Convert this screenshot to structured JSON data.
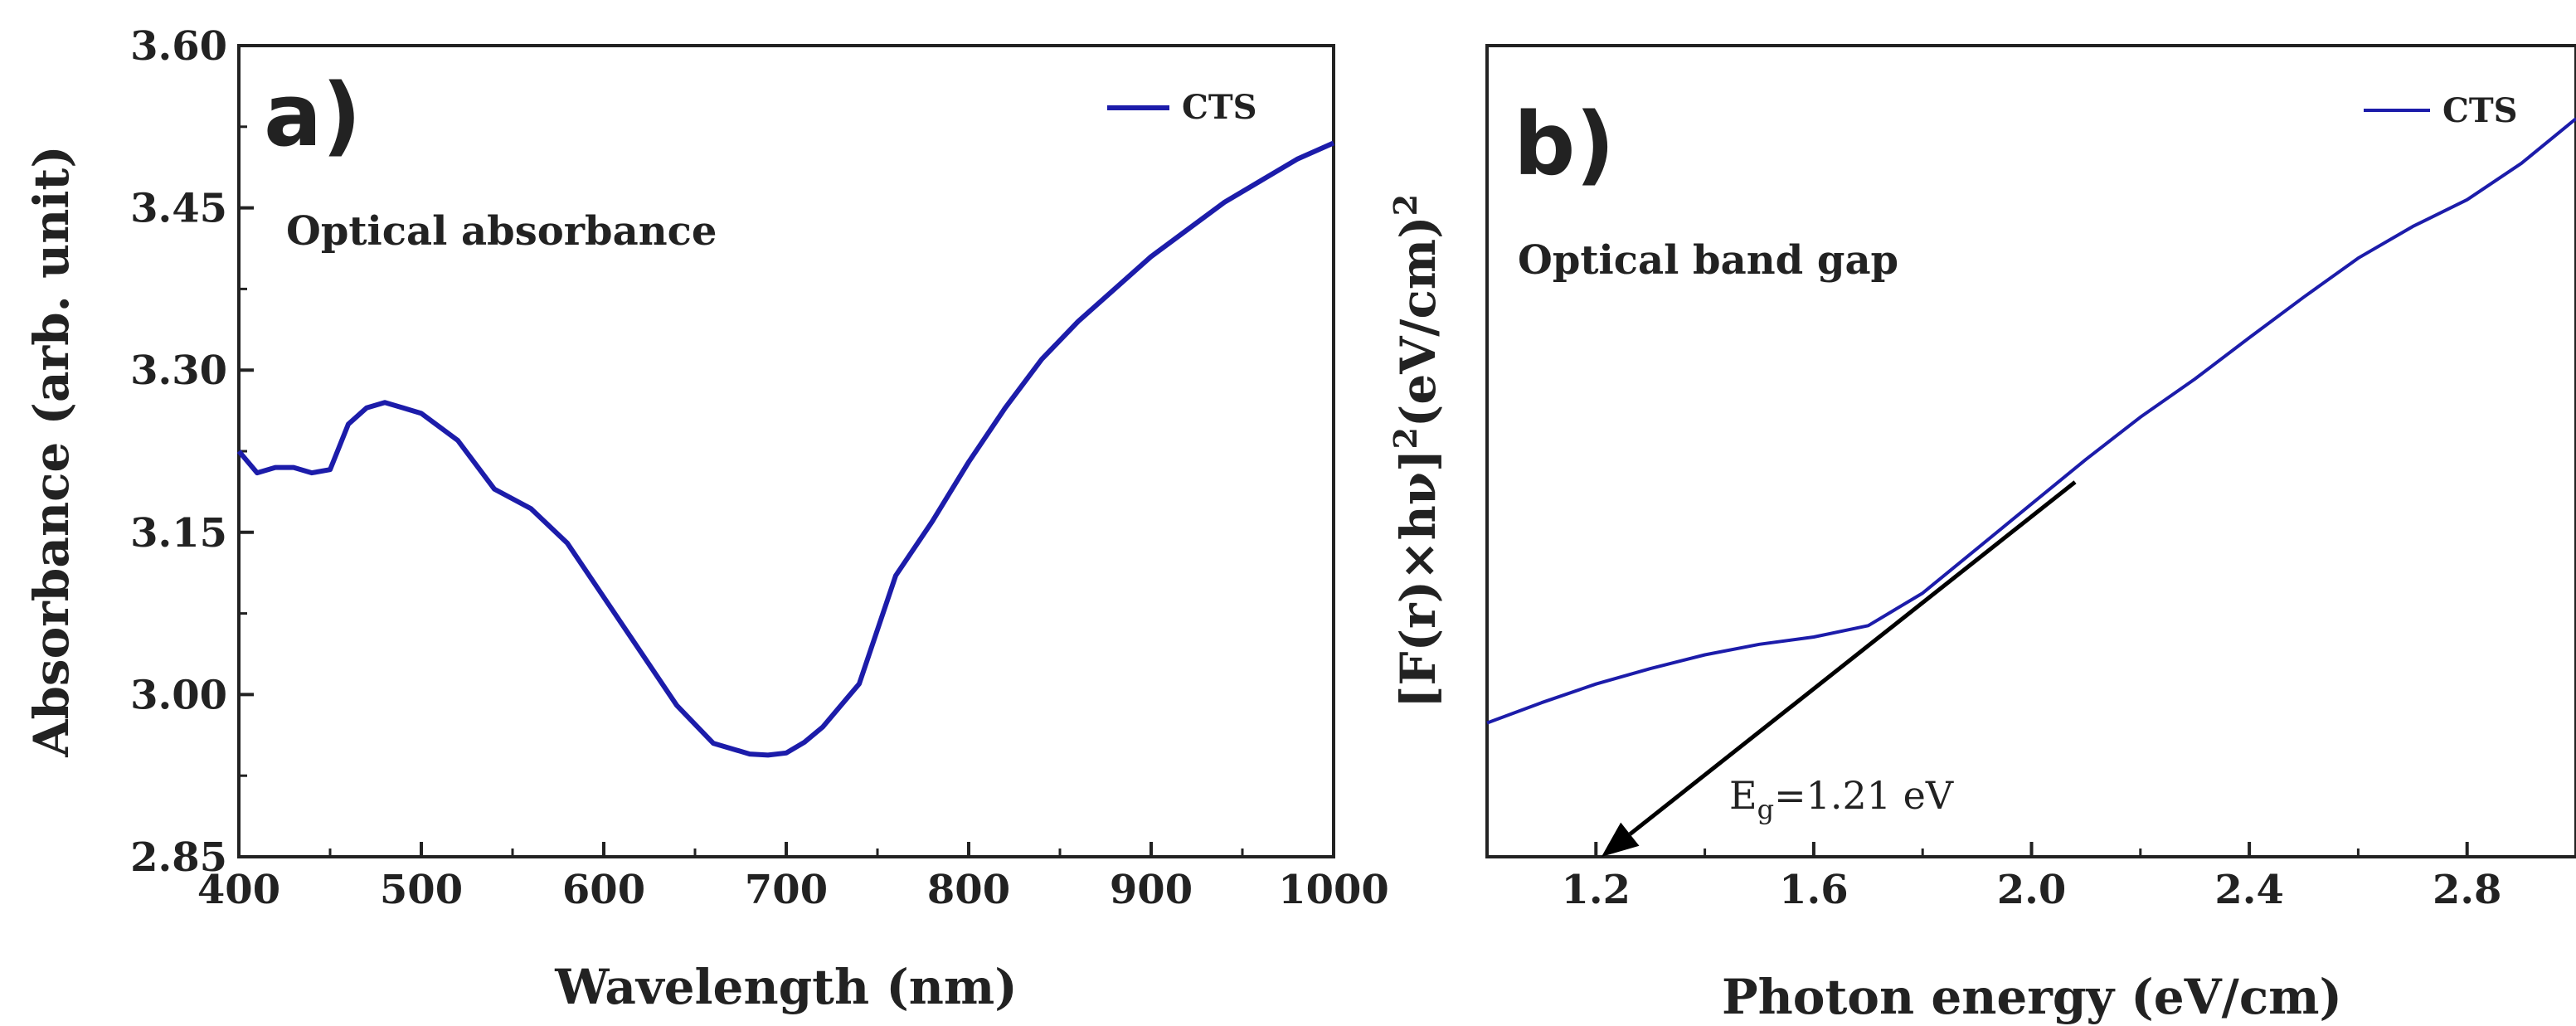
{
  "colors": {
    "series": "#1c1caa",
    "axis": "#222222",
    "arrow": "#000000"
  },
  "chart_data": [
    {
      "type": "line",
      "panel_label": "a)",
      "annotation": "Optical absorbance",
      "xlabel": "Wavelength (nm)",
      "ylabel": "Absorbance (arb. unit)",
      "xlim": [
        400,
        1000
      ],
      "ylim": [
        2.85,
        3.6
      ],
      "xticks": [
        400,
        500,
        600,
        700,
        800,
        900,
        1000
      ],
      "xtick_labels": [
        "400",
        "500",
        "600",
        "700",
        "800",
        "900",
        "1000"
      ],
      "yticks": [
        2.85,
        3.0,
        3.15,
        3.3,
        3.45,
        3.6
      ],
      "ytick_labels": [
        "2.85",
        "3.00",
        "3.15",
        "3.30",
        "3.45",
        "3.60"
      ],
      "legend": [
        "CTS"
      ],
      "legend_position": "top-right",
      "series": [
        {
          "name": "CTS",
          "x": [
            400,
            410,
            420,
            430,
            440,
            450,
            460,
            470,
            480,
            490,
            500,
            520,
            540,
            560,
            580,
            600,
            620,
            640,
            660,
            680,
            690,
            700,
            710,
            720,
            730,
            740,
            750,
            760,
            780,
            800,
            820,
            840,
            860,
            880,
            900,
            920,
            940,
            960,
            980,
            1000
          ],
          "y": [
            3.225,
            3.205,
            3.21,
            3.21,
            3.205,
            3.208,
            3.25,
            3.265,
            3.27,
            3.265,
            3.26,
            3.235,
            3.19,
            3.172,
            3.14,
            3.09,
            3.04,
            2.99,
            2.955,
            2.945,
            2.944,
            2.946,
            2.956,
            2.97,
            2.99,
            3.01,
            3.06,
            3.11,
            3.16,
            3.215,
            3.265,
            3.31,
            3.345,
            3.375,
            3.405,
            3.43,
            3.455,
            3.475,
            3.495,
            3.51
          ]
        }
      ]
    },
    {
      "type": "line",
      "panel_label": "b)",
      "annotation": "Optical band gap",
      "xlabel": "Photon energy (eV/cm)",
      "ylabel": "[F(r)×hν]²(eV/cm)²",
      "ylabel_parts": {
        "a": "[F(r)×hν]",
        "sup1": "2",
        "b": "(eV/cm)",
        "sup2": "2"
      },
      "xlim": [
        1.0,
        3.0
      ],
      "ylim": [
        0,
        1
      ],
      "xticks": [
        1.2,
        1.6,
        2.0,
        2.4,
        2.8
      ],
      "xtick_labels": [
        "1.2",
        "1.6",
        "2.0",
        "2.4",
        "2.8"
      ],
      "legend": [
        "CTS"
      ],
      "legend_position": "top-right",
      "series": [
        {
          "name": "CTS",
          "x": [
            1.0,
            1.1,
            1.2,
            1.3,
            1.4,
            1.5,
            1.6,
            1.7,
            1.8,
            1.9,
            2.0,
            2.1,
            2.2,
            2.3,
            2.4,
            2.5,
            2.6,
            2.7,
            2.8,
            2.9,
            3.0
          ],
          "y": [
            0.165,
            0.19,
            0.213,
            0.232,
            0.249,
            0.262,
            0.271,
            0.285,
            0.325,
            0.38,
            0.435,
            0.49,
            0.542,
            0.589,
            0.64,
            0.69,
            0.738,
            0.777,
            0.81,
            0.855,
            0.91
          ]
        }
      ],
      "tangent": {
        "x1": 2.08,
        "y1": 0.462,
        "x2": 1.21,
        "y2": 0.0
      },
      "eg_label": {
        "main": "E",
        "sub": "g",
        "rest": "=1.21 eV"
      }
    }
  ]
}
